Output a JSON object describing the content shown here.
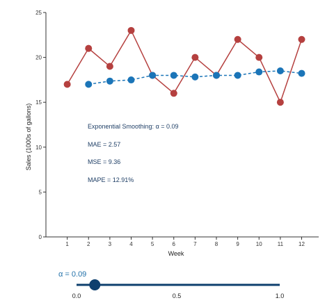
{
  "chart_data": {
    "type": "line",
    "xlabel": "Week",
    "ylabel": "Sales (1000s of gallons)",
    "xlim": [
      0,
      12.8
    ],
    "ylim": [
      0,
      25
    ],
    "x_ticks": [
      1,
      2,
      3,
      4,
      5,
      6,
      7,
      8,
      9,
      10,
      11,
      12
    ],
    "y_ticks": [
      0,
      5,
      10,
      15,
      20,
      25
    ],
    "grid": false,
    "series": [
      {
        "name": "",
        "style": "solid",
        "color": "#b5403f",
        "x": [
          1,
          2,
          3,
          4,
          5,
          6,
          7,
          8,
          9,
          10,
          11,
          12
        ],
        "y": [
          17,
          21,
          19,
          23,
          18,
          16,
          20,
          18,
          22,
          20,
          15,
          22
        ]
      },
      {
        "name": "",
        "style": "dashed",
        "color": "#1b75b8",
        "x": [
          2,
          3,
          4,
          5,
          6,
          7,
          8,
          9,
          10,
          11,
          12
        ],
        "y": [
          17,
          17.36,
          17.49,
          18,
          18,
          17.82,
          18,
          18,
          18.38,
          18.5,
          18.22
        ]
      }
    ],
    "annotations": [
      "Exponential Smoothing: α = 0.09",
      "MAE = 2.57",
      "MSE = 9.36",
      "MAPE = 12.91%"
    ]
  },
  "slider": {
    "label": "α = 0.09",
    "value": 0.09,
    "min": 0,
    "max": 1,
    "ticks": [
      "0.0",
      "0.5",
      "1.0"
    ],
    "track_color": "#0e3f6e",
    "handle_color": "#0e3f6e"
  }
}
